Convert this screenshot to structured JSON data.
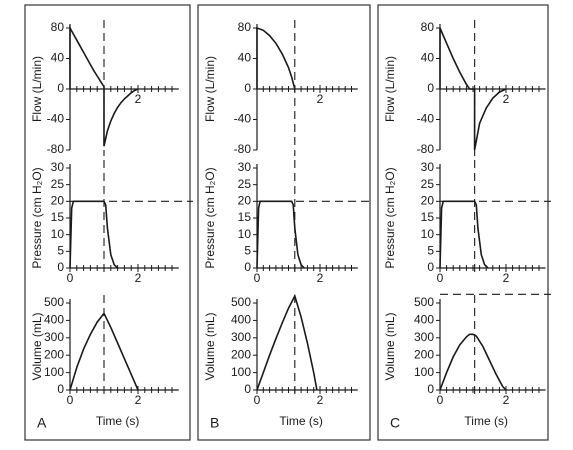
{
  "chart_data": [
    {
      "type": "line",
      "ylabel": "Flow (L/min)",
      "xlim": [
        0,
        3.2
      ],
      "ylim": [
        -80,
        80
      ],
      "yticks": [
        80,
        40,
        0,
        -40,
        -80
      ],
      "xticks": [
        2
      ],
      "xminorticks": [
        0.2,
        0.4,
        0.6,
        0.8,
        1,
        1.2,
        1.4,
        1.6,
        1.8,
        2.2,
        2.4,
        2.6,
        2.8,
        3
      ],
      "color": "#1a1a1a",
      "vline": 1.0,
      "x": [
        0,
        0,
        0.1,
        0.2,
        0.3,
        0.4,
        0.5,
        0.6,
        0.7,
        0.8,
        0.9,
        1.0,
        1.0,
        1.1,
        1.2,
        1.3,
        1.4,
        1.5,
        1.6,
        1.7,
        1.8,
        1.9,
        2.0
      ],
      "values": [
        0,
        80,
        72,
        64,
        56,
        48,
        40,
        32,
        24,
        17,
        10,
        3,
        -75,
        -55,
        -42,
        -32,
        -24,
        -18,
        -13,
        -9,
        -5,
        -2,
        0
      ]
    },
    {
      "type": "line",
      "ylabel": "Pressure (cm H₂O)",
      "xlim": [
        0,
        3.2
      ],
      "ylim": [
        0,
        30
      ],
      "yticks": [
        30,
        25,
        20,
        15,
        10,
        5,
        0
      ],
      "xticks": [
        0,
        2
      ],
      "xminorticks": [
        0.2,
        0.4,
        0.6,
        0.8,
        1,
        1.2,
        1.4,
        1.6,
        1.8,
        2.2,
        2.4,
        2.6,
        2.8,
        3
      ],
      "color": "#1a1a1a",
      "vline": 1.0,
      "hline": 20,
      "x": [
        0,
        0.05,
        0.1,
        1.0,
        1.05,
        1.1,
        1.2,
        1.3,
        1.4
      ],
      "values": [
        0,
        18,
        20,
        20,
        19,
        12,
        4,
        1,
        0
      ]
    },
    {
      "type": "line",
      "ylabel": "Volume (mL)",
      "xlabel": "Time (s)",
      "panel": "A",
      "xlim": [
        0,
        3.2
      ],
      "ylim": [
        0,
        500
      ],
      "yticks": [
        500,
        400,
        300,
        200,
        100,
        0
      ],
      "xticks": [
        0,
        2
      ],
      "xminorticks": [
        0.2,
        0.4,
        0.6,
        0.8,
        1,
        1.2,
        1.4,
        1.6,
        1.8,
        2.2,
        2.4,
        2.6,
        2.8,
        3
      ],
      "color": "#1a1a1a",
      "vline": 1.0,
      "x": [
        0,
        0.2,
        0.4,
        0.6,
        0.8,
        1.0,
        1.2,
        1.4,
        1.6,
        1.8,
        2.0
      ],
      "values": [
        0,
        130,
        235,
        320,
        390,
        440,
        360,
        270,
        180,
        90,
        0
      ]
    },
    {
      "type": "line",
      "ylabel": "Flow (L/min)",
      "xlim": [
        0,
        3.2
      ],
      "ylim": [
        -80,
        80
      ],
      "yticks": [
        80,
        40,
        0,
        -40,
        -80
      ],
      "xticks": [
        2
      ],
      "xminorticks": [
        0.2,
        0.4,
        0.6,
        0.8,
        1,
        1.2,
        1.4,
        1.6,
        1.8,
        2.2,
        2.4,
        2.6,
        2.8,
        3
      ],
      "color": "#1a1a1a",
      "vline": 1.2,
      "x": [
        0,
        0,
        0.2,
        0.4,
        0.6,
        0.8,
        1.0,
        1.1,
        1.2
      ],
      "values": [
        0,
        80,
        77,
        70,
        60,
        46,
        28,
        16,
        0
      ]
    },
    {
      "type": "line",
      "ylabel": "Pressure (cm H₂O)",
      "xlim": [
        0,
        3.2
      ],
      "ylim": [
        0,
        30
      ],
      "yticks": [
        30,
        25,
        20,
        15,
        10,
        5,
        0
      ],
      "xticks": [
        0,
        2
      ],
      "xminorticks": [
        0.2,
        0.4,
        0.6,
        0.8,
        1,
        1.2,
        1.4,
        1.6,
        1.8,
        2.2,
        2.4,
        2.6,
        2.8,
        3
      ],
      "color": "#1a1a1a",
      "vline": 1.2,
      "hline": 20,
      "x": [
        0,
        0.05,
        0.1,
        1.1,
        1.15,
        1.2,
        1.3,
        1.4,
        1.5
      ],
      "values": [
        0,
        18,
        20,
        20,
        19,
        12,
        4,
        1,
        0
      ]
    },
    {
      "type": "line",
      "ylabel": "Volume (mL)",
      "xlabel": "Time (s)",
      "panel": "B",
      "xlim": [
        0,
        3.2
      ],
      "ylim": [
        0,
        500
      ],
      "yticks": [
        500,
        400,
        300,
        200,
        100,
        0
      ],
      "xticks": [
        0,
        2
      ],
      "xminorticks": [
        0.2,
        0.4,
        0.6,
        0.8,
        1,
        1.2,
        1.4,
        1.6,
        1.8,
        2.2,
        2.4,
        2.6,
        2.8,
        3
      ],
      "color": "#1a1a1a",
      "vline": 1.2,
      "x": [
        0,
        0.2,
        0.4,
        0.6,
        0.8,
        1.0,
        1.2,
        1.4,
        1.6,
        1.8,
        1.9
      ],
      "values": [
        0,
        100,
        200,
        295,
        385,
        470,
        540,
        420,
        270,
        100,
        0
      ]
    },
    {
      "type": "line",
      "ylabel": "Flow (L/min)",
      "xlim": [
        0,
        3.2
      ],
      "ylim": [
        -80,
        80
      ],
      "yticks": [
        80,
        40,
        0,
        -40,
        -80
      ],
      "xticks": [
        2
      ],
      "xminorticks": [
        0.2,
        0.4,
        0.6,
        0.8,
        1,
        1.2,
        1.4,
        1.6,
        1.8,
        2.2,
        2.4,
        2.6,
        2.8,
        3
      ],
      "color": "#1a1a1a",
      "vline": 1.05,
      "x": [
        0,
        0,
        0.2,
        0.4,
        0.6,
        0.8,
        0.9,
        1.05,
        1.05,
        1.2,
        1.4,
        1.6,
        1.8,
        2.0
      ],
      "values": [
        0,
        80,
        60,
        40,
        22,
        6,
        0,
        0,
        -80,
        -45,
        -25,
        -12,
        -4,
        0
      ]
    },
    {
      "type": "line",
      "ylabel": "Pressure (cm H₂O)",
      "xlim": [
        0,
        3.2
      ],
      "ylim": [
        0,
        30
      ],
      "yticks": [
        30,
        25,
        20,
        15,
        10,
        5,
        0
      ],
      "xticks": [
        0,
        2
      ],
      "xminorticks": [
        0.2,
        0.4,
        0.6,
        0.8,
        1,
        1.2,
        1.4,
        1.6,
        1.8,
        2.2,
        2.4,
        2.6,
        2.8,
        3
      ],
      "color": "#1a1a1a",
      "vline": 1.05,
      "hline": 20,
      "x": [
        0,
        0.05,
        0.1,
        1.05,
        1.1,
        1.15,
        1.25,
        1.35,
        1.45
      ],
      "values": [
        0,
        18,
        20,
        20,
        19,
        12,
        4,
        1,
        0
      ]
    },
    {
      "type": "line",
      "ylabel": "Volume (mL)",
      "xlabel": "Time (s)",
      "panel": "C",
      "xlim": [
        0,
        3.2
      ],
      "ylim": [
        0,
        500
      ],
      "yticks": [
        500,
        400,
        300,
        200,
        100,
        0
      ],
      "xticks": [
        0,
        2
      ],
      "xminorticks": [
        0.2,
        0.4,
        0.6,
        0.8,
        1,
        1.2,
        1.4,
        1.6,
        1.8,
        2.2,
        2.4,
        2.6,
        2.8,
        3
      ],
      "color": "#1a1a1a",
      "vline": 1.05,
      "hline": 550,
      "x": [
        0,
        0.2,
        0.4,
        0.6,
        0.8,
        0.9,
        1.0,
        1.1,
        1.3,
        1.5,
        1.7,
        1.9,
        2.0
      ],
      "values": [
        0,
        100,
        190,
        260,
        305,
        320,
        320,
        310,
        250,
        170,
        90,
        20,
        0
      ]
    }
  ]
}
